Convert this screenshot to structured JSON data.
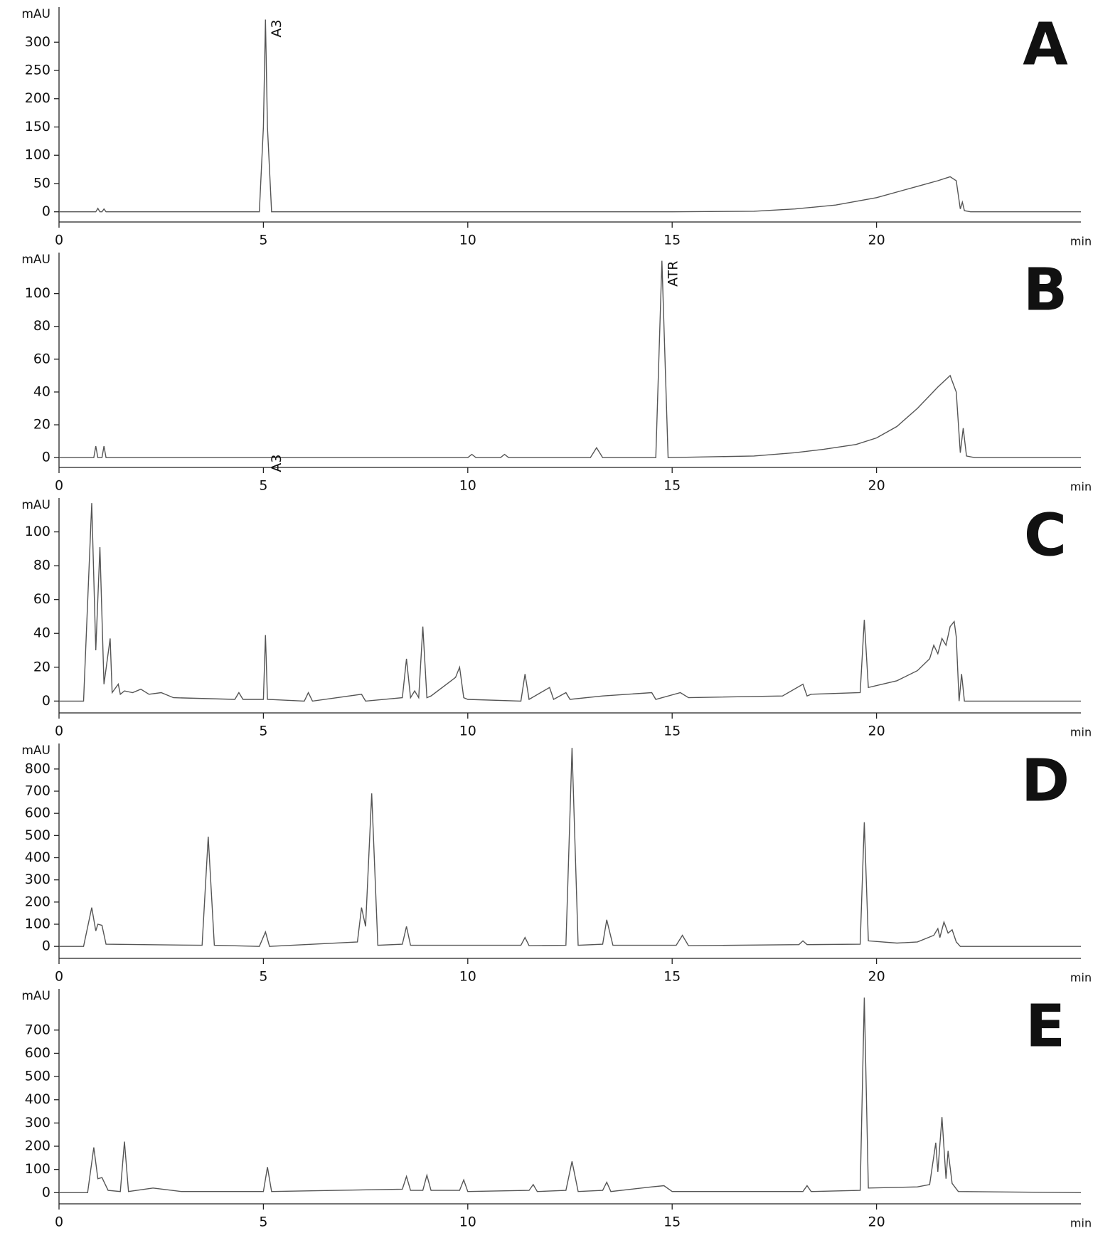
{
  "chart_data": [
    {
      "type": "line",
      "panel_label": "A",
      "ylabel": "mAU",
      "xlabel": "min",
      "x": [
        0,
        0.9,
        0.95,
        1.0,
        1.05,
        1.1,
        1.15,
        4.9,
        5.0,
        5.05,
        5.1,
        5.2,
        15,
        17,
        18,
        19,
        20,
        21,
        21.5,
        21.8,
        21.95,
        22.05,
        22.1,
        22.15,
        22.3,
        25
      ],
      "series": [
        {
          "color": "#555555",
          "values": [
            0,
            0,
            6,
            0,
            0,
            5,
            0,
            0,
            150,
            340,
            150,
            0,
            0,
            1,
            5,
            12,
            25,
            45,
            55,
            62,
            55,
            5,
            17,
            2,
            0,
            0
          ]
        }
      ],
      "annotations": [
        {
          "text": "A3",
          "x": 5.05,
          "y": 340
        }
      ],
      "xlim": [
        0,
        25
      ],
      "xticks": [
        0,
        5,
        10,
        15,
        20
      ],
      "ylim": [
        -18,
        362
      ],
      "yticks": [
        0,
        50,
        100,
        150,
        200,
        250,
        300
      ]
    },
    {
      "type": "line",
      "panel_label": "B",
      "ylabel": "mAU",
      "xlabel": "min",
      "x": [
        0,
        0.85,
        0.9,
        0.95,
        1.05,
        1.1,
        1.15,
        10,
        10.1,
        10.2,
        10.8,
        10.9,
        11,
        13,
        13.15,
        13.3,
        14.6,
        14.75,
        14.9,
        17,
        18,
        18.7,
        19.5,
        20,
        20.5,
        21,
        21.5,
        21.8,
        21.95,
        22.05,
        22.12,
        22.2,
        22.4,
        25
      ],
      "series": [
        {
          "color": "#555555",
          "values": [
            0,
            0,
            7,
            0,
            0,
            7,
            0,
            0,
            2,
            0,
            0,
            2,
            0,
            0,
            6,
            0,
            0,
            120,
            0,
            1,
            3,
            5,
            8,
            12,
            19,
            30,
            43,
            50,
            40,
            3,
            18,
            1,
            0,
            0
          ]
        }
      ],
      "annotations": [
        {
          "text": "A3",
          "x": 5.05,
          "y": 2
        },
        {
          "text": "ATR",
          "x": 14.75,
          "y": 120
        }
      ],
      "xlim": [
        0,
        25
      ],
      "xticks": [
        0,
        5,
        10,
        15,
        20
      ],
      "ylim": [
        -6,
        125
      ],
      "yticks": [
        0,
        20,
        40,
        60,
        80,
        100
      ]
    },
    {
      "type": "line",
      "panel_label": "C",
      "ylabel": "mAU",
      "xlabel": "min",
      "x": [
        0,
        0.6,
        0.8,
        0.9,
        1.0,
        1.1,
        1.25,
        1.3,
        1.45,
        1.5,
        1.6,
        1.8,
        2.0,
        2.2,
        2.5,
        2.8,
        4.3,
        4.4,
        4.5,
        5.0,
        5.05,
        5.1,
        6.0,
        6.1,
        6.2,
        7.4,
        7.5,
        8.4,
        8.5,
        8.6,
        8.7,
        8.8,
        8.9,
        9.0,
        9.1,
        9.7,
        9.8,
        9.9,
        10.0,
        11.3,
        11.4,
        11.5,
        12.0,
        12.1,
        12.4,
        12.5,
        13.3,
        14.5,
        14.6,
        15.2,
        15.4,
        17.7,
        18.2,
        18.3,
        18.4,
        19.6,
        19.7,
        19.8,
        20.5,
        21,
        21.3,
        21.4,
        21.5,
        21.6,
        21.7,
        21.8,
        21.9,
        21.95,
        22.02,
        22.08,
        22.15,
        22.4,
        25
      ],
      "series": [
        {
          "color": "#555555",
          "values": [
            0,
            0,
            117,
            30,
            91,
            10,
            37,
            5,
            10,
            4,
            6,
            5,
            7,
            4,
            5,
            2,
            1,
            5,
            1,
            1,
            39,
            1,
            0,
            5,
            0,
            4,
            0,
            2,
            25,
            2,
            6,
            2,
            44,
            2,
            3,
            14,
            20,
            2,
            1,
            0,
            16,
            1,
            8,
            1,
            5,
            1,
            3,
            5,
            1,
            5,
            2,
            3,
            10,
            3,
            4,
            5,
            48,
            8,
            12,
            18,
            25,
            33,
            28,
            37,
            33,
            44,
            47,
            38,
            0,
            16,
            0,
            0,
            0
          ]
        }
      ],
      "xlim": [
        0,
        25
      ],
      "xticks": [
        0,
        5,
        10,
        15,
        20
      ],
      "ylim": [
        -7,
        120
      ],
      "yticks": [
        0,
        20,
        40,
        60,
        80,
        100
      ]
    },
    {
      "type": "line",
      "panel_label": "D",
      "ylabel": "mAU",
      "xlabel": "min",
      "x": [
        0,
        0.6,
        0.8,
        0.9,
        0.95,
        1.05,
        1.15,
        3.5,
        3.65,
        3.8,
        4.9,
        5.05,
        5.15,
        7.3,
        7.4,
        7.5,
        7.65,
        7.8,
        8.4,
        8.5,
        8.6,
        11.3,
        11.4,
        11.5,
        12.4,
        12.55,
        12.7,
        13.3,
        13.4,
        13.55,
        15.1,
        15.25,
        15.4,
        18.1,
        18.2,
        18.3,
        19.6,
        19.7,
        19.8,
        20.5,
        21,
        21.4,
        21.5,
        21.55,
        21.65,
        21.75,
        21.85,
        21.95,
        22.05,
        25
      ],
      "series": [
        {
          "color": "#555555",
          "values": [
            0,
            0,
            175,
            70,
            100,
            95,
            10,
            5,
            495,
            5,
            0,
            65,
            0,
            20,
            175,
            90,
            690,
            5,
            10,
            90,
            5,
            5,
            40,
            3,
            5,
            895,
            5,
            10,
            120,
            5,
            5,
            50,
            3,
            8,
            25,
            8,
            10,
            560,
            25,
            15,
            20,
            50,
            80,
            40,
            110,
            60,
            75,
            20,
            0,
            0
          ]
        }
      ],
      "xlim": [
        0,
        25
      ],
      "xticks": [
        0,
        5,
        10,
        15,
        20
      ],
      "ylim": [
        -54,
        915
      ],
      "yticks": [
        0,
        100,
        200,
        300,
        400,
        500,
        600,
        700,
        800
      ]
    },
    {
      "type": "line",
      "panel_label": "E",
      "ylabel": "mAU",
      "xlabel": "min",
      "x": [
        0,
        0.7,
        0.85,
        0.95,
        1.05,
        1.2,
        1.5,
        1.6,
        1.7,
        2.3,
        3,
        5.0,
        5.1,
        5.2,
        8.4,
        8.5,
        8.6,
        8.9,
        9.0,
        9.1,
        9.8,
        9.9,
        10.0,
        11.5,
        11.6,
        11.7,
        12.4,
        12.55,
        12.7,
        13.3,
        13.4,
        13.5,
        14.5,
        14.8,
        15,
        18.2,
        18.3,
        18.4,
        19.6,
        19.7,
        19.8,
        21,
        21.3,
        21.45,
        21.5,
        21.6,
        21.7,
        21.75,
        21.85,
        22.0,
        25
      ],
      "series": [
        {
          "color": "#555555",
          "values": [
            0,
            0,
            195,
            60,
            65,
            10,
            5,
            220,
            5,
            20,
            5,
            5,
            110,
            5,
            15,
            70,
            10,
            10,
            75,
            10,
            10,
            55,
            5,
            10,
            35,
            5,
            10,
            135,
            5,
            10,
            45,
            5,
            25,
            30,
            5,
            5,
            30,
            5,
            10,
            840,
            20,
            25,
            35,
            215,
            90,
            325,
            60,
            180,
            40,
            5,
            0
          ]
        }
      ],
      "xlim": [
        0,
        25
      ],
      "xticks": [
        0,
        5,
        10,
        15,
        20
      ],
      "ylim": [
        -48,
        877
      ],
      "yticks": [
        0,
        100,
        200,
        300,
        400,
        500,
        600,
        700
      ]
    }
  ]
}
